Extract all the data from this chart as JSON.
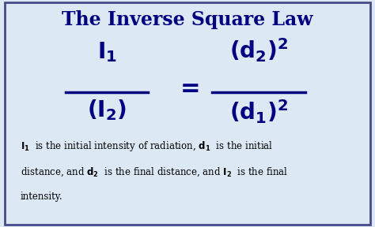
{
  "title": "The Inverse Square Law",
  "bg_color": "#dce9f5",
  "border_color": "#4a4a8a",
  "title_color": "#000080",
  "text_color": "#000080",
  "caption_color": "#000000",
  "title_fontsize": 17,
  "formula_fontsize": 20,
  "caption_fontsize": 8.5,
  "caption_line1": "$\\mathbf{I_1}$  is the initial intensity of radiation, $\\mathbf{d_1}$  is the initial",
  "caption_line2": "distance, and $\\mathbf{d_2}$  is the final distance, and $\\mathbf{I_2}$  is the final",
  "caption_line3": "intensity."
}
